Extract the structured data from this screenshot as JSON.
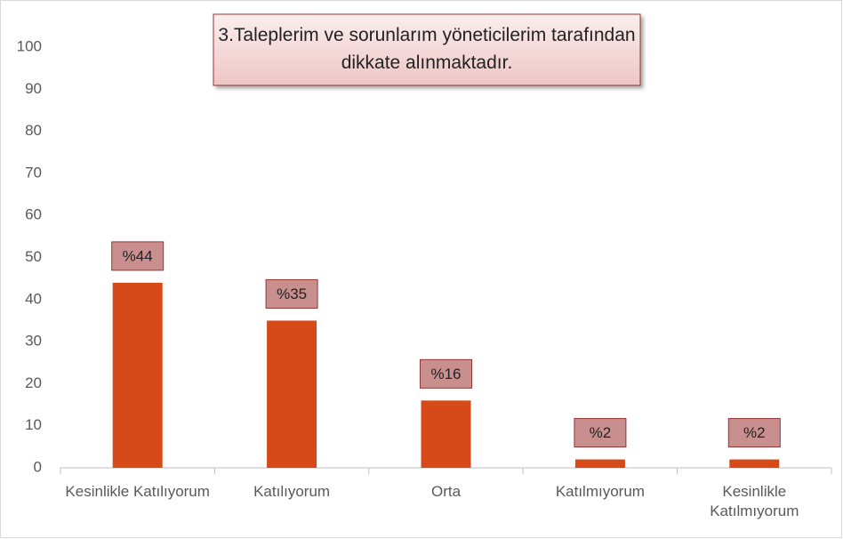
{
  "chart_data": {
    "type": "bar",
    "title": "3.Taleplerim ve sorunlarım yöneticilerim tarafından dikkate alınmaktadır.",
    "categories": [
      "Kesinlikle Katılıyorum",
      "Katılıyorum",
      "Orta",
      "Katılmıyorum",
      "Kesinlikle Katılmıyorum"
    ],
    "values": [
      44,
      35,
      16,
      2,
      2
    ],
    "value_labels": [
      "%44",
      "%35",
      "%16",
      "%2",
      "%2"
    ],
    "color": "#d64a1a",
    "ylim": [
      0,
      100
    ],
    "yticks": [
      0,
      10,
      20,
      30,
      40,
      50,
      60,
      70,
      80,
      90,
      100
    ],
    "grid": false
  }
}
